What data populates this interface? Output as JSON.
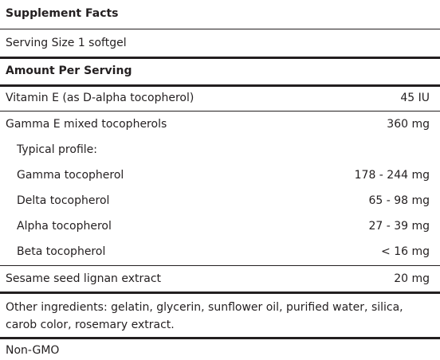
{
  "title": "Supplement Facts",
  "serving_size": "Serving Size 1 softgel",
  "amount_header": "Amount Per Serving",
  "rows": [
    {
      "name": "Vitamin E (as D-alpha tocopherol)",
      "amount": "45 IU"
    },
    {
      "name": "Gamma E mixed tocopherols",
      "amount": "360 mg"
    },
    {
      "name": "Typical profile:",
      "amount": ""
    },
    {
      "name": "Gamma tocopherol",
      "amount": "178 - 244 mg"
    },
    {
      "name": "Delta tocopherol",
      "amount": "65 - 98 mg"
    },
    {
      "name": "Alpha tocopherol",
      "amount": "27 - 39 mg"
    },
    {
      "name": "Beta tocopherol",
      "amount": "< 16 mg"
    },
    {
      "name": "Sesame seed lignan extract",
      "amount": "20 mg"
    }
  ],
  "other_ingredients": "Other ingredients: gelatin, glycerin, sunflower oil, purified water, silica, carob color, rosemary extract.",
  "footer": "Non-GMO"
}
